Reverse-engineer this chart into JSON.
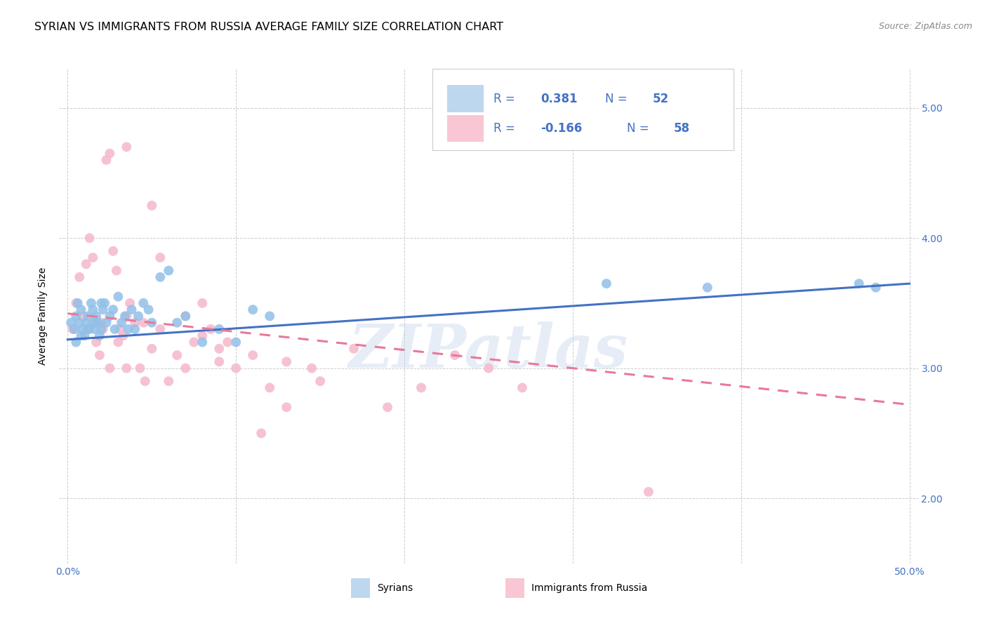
{
  "title": "SYRIAN VS IMMIGRANTS FROM RUSSIA AVERAGE FAMILY SIZE CORRELATION CHART",
  "source": "Source: ZipAtlas.com",
  "ylabel": "Average Family Size",
  "watermark": "ZIPatlas",
  "ylim": [
    1.5,
    5.3
  ],
  "xlim": [
    -0.005,
    0.505
  ],
  "yticks": [
    2.0,
    3.0,
    4.0,
    5.0
  ],
  "xticks": [
    0.0,
    0.1,
    0.2,
    0.3,
    0.4,
    0.5
  ],
  "blue_scatter_color": "#92C0E8",
  "pink_scatter_color": "#F5B8CB",
  "blue_line_color": "#4472C4",
  "pink_line_color": "#E8799A",
  "legend_blue_fill": "#BDD7EE",
  "legend_pink_fill": "#F9C6D4",
  "legend_text_color": "#4472C4",
  "right_tick_color": "#4472C4",
  "R_blue": "0.381",
  "N_blue": "52",
  "R_pink": "-0.166",
  "N_pink": "58",
  "blue_scatter_x": [
    0.002,
    0.004,
    0.005,
    0.006,
    0.007,
    0.008,
    0.009,
    0.01,
    0.011,
    0.012,
    0.013,
    0.014,
    0.015,
    0.016,
    0.017,
    0.018,
    0.019,
    0.02,
    0.021,
    0.022,
    0.023,
    0.025,
    0.027,
    0.028,
    0.03,
    0.032,
    0.034,
    0.036,
    0.038,
    0.04,
    0.042,
    0.045,
    0.048,
    0.05,
    0.055,
    0.06,
    0.065,
    0.07,
    0.08,
    0.09,
    0.1,
    0.11,
    0.12,
    0.005,
    0.008,
    0.012,
    0.016,
    0.02,
    0.32,
    0.38,
    0.47,
    0.48
  ],
  "blue_scatter_y": [
    3.35,
    3.3,
    3.4,
    3.5,
    3.35,
    3.45,
    3.3,
    3.25,
    3.35,
    3.4,
    3.3,
    3.5,
    3.45,
    3.3,
    3.4,
    3.35,
    3.25,
    3.3,
    3.45,
    3.5,
    3.35,
    3.4,
    3.45,
    3.3,
    3.55,
    3.35,
    3.4,
    3.3,
    3.45,
    3.3,
    3.4,
    3.5,
    3.45,
    3.35,
    3.7,
    3.75,
    3.35,
    3.4,
    3.2,
    3.3,
    3.2,
    3.45,
    3.4,
    3.2,
    3.25,
    3.3,
    3.35,
    3.5,
    3.65,
    3.62,
    3.65,
    3.62
  ],
  "pink_scatter_x": [
    0.003,
    0.005,
    0.007,
    0.009,
    0.011,
    0.013,
    0.015,
    0.017,
    0.019,
    0.021,
    0.023,
    0.025,
    0.027,
    0.029,
    0.031,
    0.033,
    0.035,
    0.037,
    0.04,
    0.043,
    0.046,
    0.05,
    0.055,
    0.06,
    0.065,
    0.07,
    0.075,
    0.08,
    0.085,
    0.09,
    0.095,
    0.1,
    0.11,
    0.12,
    0.035,
    0.07,
    0.08,
    0.09,
    0.13,
    0.15,
    0.17,
    0.19,
    0.21,
    0.23,
    0.25,
    0.27,
    0.015,
    0.02,
    0.025,
    0.03,
    0.035,
    0.045,
    0.05,
    0.055,
    0.345,
    0.115,
    0.13,
    0.145
  ],
  "pink_scatter_y": [
    3.3,
    3.5,
    3.7,
    3.4,
    3.8,
    4.0,
    3.35,
    3.2,
    3.1,
    3.3,
    4.6,
    4.65,
    3.9,
    3.75,
    3.3,
    3.25,
    3.4,
    3.5,
    3.35,
    3.0,
    2.9,
    4.25,
    3.85,
    2.9,
    3.1,
    3.0,
    3.2,
    3.25,
    3.3,
    3.15,
    3.2,
    3.0,
    3.1,
    2.85,
    4.7,
    3.4,
    3.5,
    3.05,
    3.05,
    2.9,
    3.15,
    2.7,
    2.85,
    3.1,
    3.0,
    2.85,
    3.85,
    3.35,
    3.0,
    3.2,
    3.0,
    3.35,
    3.15,
    3.3,
    2.05,
    2.5,
    2.7,
    3.0
  ],
  "blue_line_x0": 0.0,
  "blue_line_x1": 0.5,
  "blue_line_y0": 3.22,
  "blue_line_y1": 3.65,
  "pink_line_x0": 0.0,
  "pink_line_x1": 0.5,
  "pink_line_y0": 3.42,
  "pink_line_y1": 2.72,
  "background_color": "#FFFFFF",
  "grid_color": "#CCCCCC",
  "title_fontsize": 11.5,
  "source_fontsize": 9,
  "axis_label_fontsize": 10,
  "tick_fontsize": 10,
  "legend_fontsize": 12
}
